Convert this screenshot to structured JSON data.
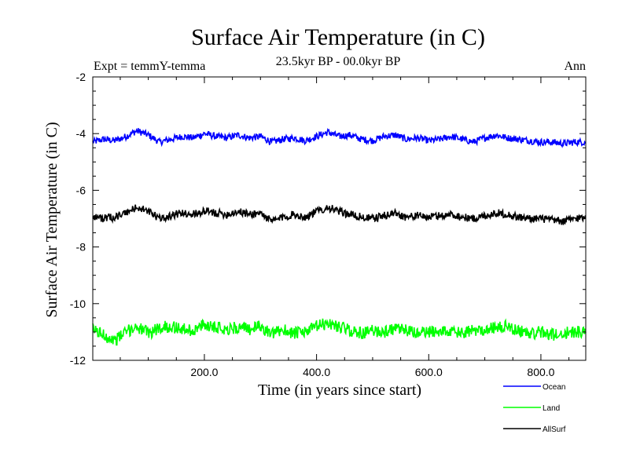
{
  "chart_data": {
    "type": "line",
    "title": "Surface Air Temperature (in C)",
    "subtitle": "23.5kyr BP - 00.0kyr BP",
    "left_annotation": "Expt = temmY-temma",
    "right_annotation": "Ann",
    "xlabel": "Time (in years since start)",
    "ylabel": "Surface Air Temperature (in C)",
    "xlim": [
      1,
      880
    ],
    "ylim": [
      -12,
      -2
    ],
    "xticks": [
      200,
      400,
      600,
      800
    ],
    "xtick_labels": [
      "200.0",
      "400.0",
      "600.0",
      "800.0"
    ],
    "yticks": [
      -12,
      -10,
      -8,
      -6,
      -4,
      -2
    ],
    "ytick_labels": [
      "-12",
      "-10",
      "-8",
      "-6",
      "-4",
      "-2"
    ],
    "legend_position": "bottom-right outside",
    "series": [
      {
        "name": "Ocean",
        "color": "#0000ff",
        "x": [
          1,
          20,
          40,
          60,
          80,
          100,
          120,
          140,
          160,
          180,
          200,
          220,
          240,
          260,
          280,
          300,
          320,
          340,
          360,
          380,
          400,
          420,
          440,
          460,
          480,
          500,
          520,
          540,
          560,
          580,
          600,
          620,
          640,
          660,
          680,
          700,
          720,
          740,
          760,
          780,
          800,
          820,
          840,
          860,
          880
        ],
        "values": [
          -4.3,
          -4.2,
          -4.25,
          -4.1,
          -3.9,
          -4.05,
          -4.3,
          -4.2,
          -4.1,
          -4.15,
          -4.0,
          -4.1,
          -4.15,
          -4.05,
          -4.15,
          -4.1,
          -4.3,
          -4.2,
          -4.15,
          -4.25,
          -4.1,
          -3.95,
          -4.1,
          -4.05,
          -4.2,
          -4.25,
          -4.1,
          -4.05,
          -4.2,
          -4.15,
          -4.25,
          -4.2,
          -4.1,
          -4.2,
          -4.3,
          -4.15,
          -4.05,
          -4.15,
          -4.2,
          -4.25,
          -4.3,
          -4.3,
          -4.35,
          -4.3,
          -4.3
        ]
      },
      {
        "name": "Land",
        "color": "#00ff00",
        "x": [
          1,
          20,
          40,
          60,
          80,
          100,
          120,
          140,
          160,
          180,
          200,
          220,
          240,
          260,
          280,
          300,
          320,
          340,
          360,
          380,
          400,
          420,
          440,
          460,
          480,
          500,
          520,
          540,
          560,
          580,
          600,
          620,
          640,
          660,
          680,
          700,
          720,
          740,
          760,
          780,
          800,
          820,
          840,
          860,
          880
        ],
        "values": [
          -10.9,
          -11.1,
          -11.3,
          -11.0,
          -10.8,
          -11.05,
          -10.85,
          -10.8,
          -10.9,
          -10.95,
          -10.75,
          -10.8,
          -10.9,
          -10.85,
          -10.9,
          -10.8,
          -11.1,
          -10.9,
          -11.05,
          -11.0,
          -10.8,
          -10.7,
          -10.8,
          -10.95,
          -11.05,
          -10.95,
          -11.0,
          -10.9,
          -10.95,
          -11.05,
          -11.0,
          -10.95,
          -11.0,
          -11.05,
          -10.95,
          -10.9,
          -10.85,
          -10.8,
          -10.95,
          -11.05,
          -11.0,
          -11.1,
          -11.05,
          -11.0,
          -11.0
        ]
      },
      {
        "name": "AllSurf",
        "color": "#000000",
        "x": [
          1,
          20,
          40,
          60,
          80,
          100,
          120,
          140,
          160,
          180,
          200,
          220,
          240,
          260,
          280,
          300,
          320,
          340,
          360,
          380,
          400,
          420,
          440,
          460,
          480,
          500,
          520,
          540,
          560,
          580,
          600,
          620,
          640,
          660,
          680,
          700,
          720,
          740,
          760,
          780,
          800,
          820,
          840,
          860,
          880
        ],
        "values": [
          -6.9,
          -7.0,
          -6.95,
          -6.8,
          -6.6,
          -6.75,
          -7.0,
          -6.9,
          -6.8,
          -6.85,
          -6.75,
          -6.8,
          -6.85,
          -6.75,
          -6.85,
          -6.8,
          -7.1,
          -6.95,
          -6.85,
          -6.95,
          -6.75,
          -6.6,
          -6.75,
          -6.85,
          -6.95,
          -7.0,
          -6.9,
          -6.8,
          -6.95,
          -6.9,
          -6.95,
          -6.9,
          -6.85,
          -6.95,
          -7.0,
          -6.9,
          -6.8,
          -6.85,
          -6.95,
          -7.0,
          -7.0,
          -7.05,
          -7.1,
          -7.0,
          -6.95
        ]
      }
    ]
  }
}
